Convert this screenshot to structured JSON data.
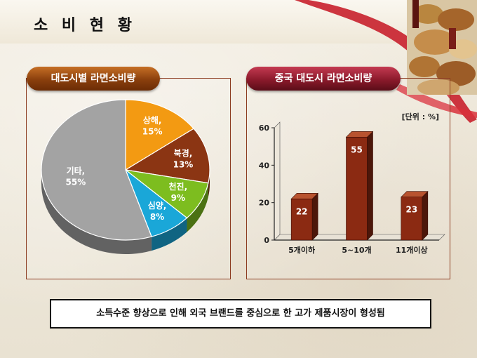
{
  "page": {
    "title": "소 비 현 황",
    "note": "소득수준 향상으로 인해 외국 브랜드를 중심으로 한 고가 제품시장이 형성됨"
  },
  "colors": {
    "accent_left": "#8a3f0d",
    "accent_right": "#8b1a2b",
    "bar_color": "#8b2a12"
  },
  "chart_data": [
    {
      "type": "pie",
      "title": "대도시별 라면소비량",
      "slices": [
        {
          "label": "상해,",
          "pct_label": "15%",
          "value": 15,
          "color": "#f39a12"
        },
        {
          "label": "북경,",
          "pct_label": "13%",
          "value": 13,
          "color": "#8b3513"
        },
        {
          "label": "천진,",
          "pct_label": "9%",
          "value": 9,
          "color": "#7dbd1f"
        },
        {
          "label": "심양,",
          "pct_label": "8%",
          "value": 8,
          "color": "#1aa7d8"
        },
        {
          "label": "기타,",
          "pct_label": "55%",
          "value": 55,
          "color": "#a3a3a3"
        }
      ]
    },
    {
      "type": "bar",
      "title": "중국 대도시 라면소비량",
      "unit_label": "[단위 : %]",
      "categories": [
        "5개이하",
        "5~10개",
        "11개이상"
      ],
      "values": [
        22,
        55,
        23
      ],
      "ylim": [
        0,
        60
      ],
      "yticks": [
        "0",
        "20",
        "40",
        "60"
      ],
      "grid": false
    }
  ]
}
